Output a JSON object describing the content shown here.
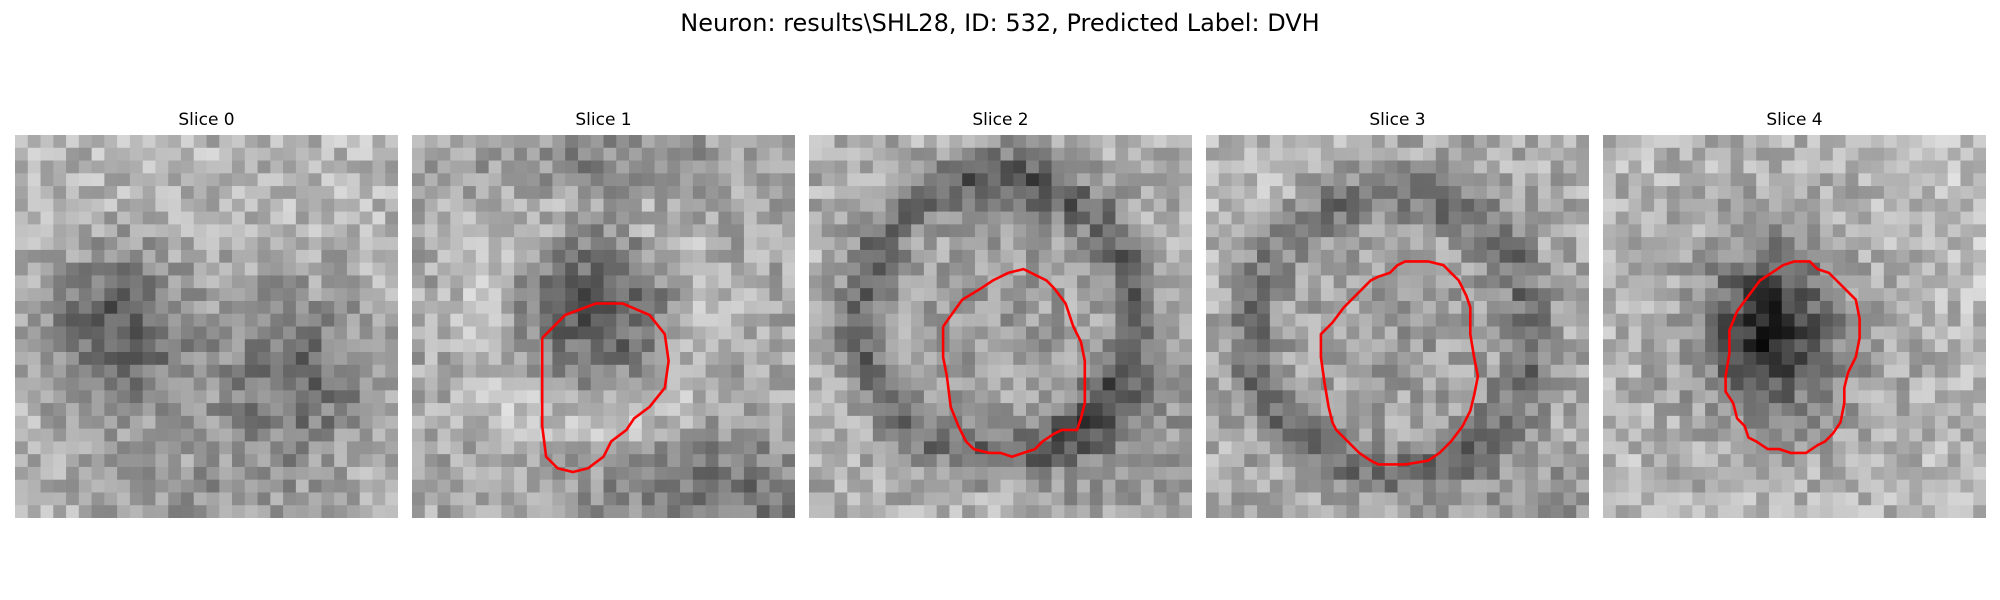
{
  "figure": {
    "title": "Neuron: results\\SHL28, ID: 532, Predicted Label: DVH"
  },
  "colors": {
    "background": "#ffffff",
    "contour": "#ff0000",
    "image_colormap": "grayscale"
  },
  "panels": [
    {
      "title": "Slice 0",
      "contour_present": false,
      "content": "noisy grayscale patch with dark blobs at left-centre and lower-right"
    },
    {
      "title": "Slice 1",
      "contour_present": true,
      "content": "small dark cell body outlined by red contour"
    },
    {
      "title": "Slice 2",
      "contour_present": true,
      "content": "large mid-gray cell outlined by red contour"
    },
    {
      "title": "Slice 3",
      "contour_present": true,
      "content": "large mid-gray cell outlined by red contour"
    },
    {
      "title": "Slice 4",
      "contour_present": true,
      "content": "cell with dark centre outlined by red contour"
    }
  ]
}
